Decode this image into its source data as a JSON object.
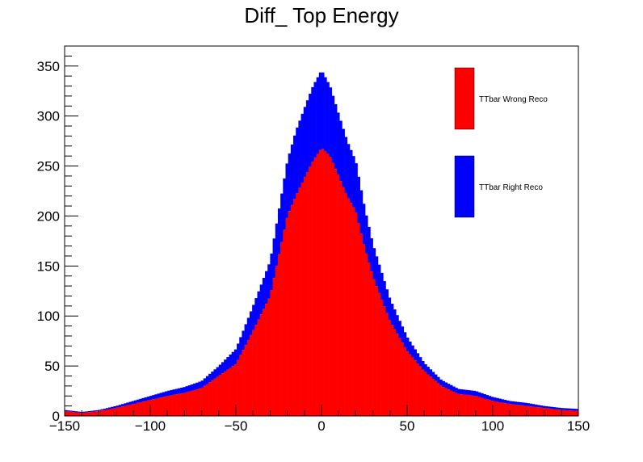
{
  "chart_data": {
    "type": "bar",
    "stacked": true,
    "title": "Diff_ Top Energy",
    "xlabel": "",
    "ylabel": "",
    "xlim": [
      -150,
      150
    ],
    "ylim": [
      0,
      370
    ],
    "bin_width": 1.5,
    "x_ticks": [
      -150,
      -100,
      -50,
      0,
      50,
      100,
      150
    ],
    "y_ticks": [
      0,
      50,
      100,
      150,
      200,
      250,
      300,
      350
    ],
    "grid": false,
    "legend_position": "top-right",
    "series": [
      {
        "name": "TTbar Wrong Reco",
        "color": "#ff0000",
        "points": [
          [
            -150,
            5
          ],
          [
            -140,
            3
          ],
          [
            -130,
            5
          ],
          [
            -120,
            8
          ],
          [
            -110,
            12
          ],
          [
            -100,
            16
          ],
          [
            -90,
            20
          ],
          [
            -80,
            23
          ],
          [
            -70,
            28
          ],
          [
            -60,
            40
          ],
          [
            -50,
            52
          ],
          [
            -40,
            85
          ],
          [
            -30,
            120
          ],
          [
            -25,
            160
          ],
          [
            -20,
            200
          ],
          [
            -15,
            220
          ],
          [
            -10,
            238
          ],
          [
            -5,
            255
          ],
          [
            0,
            268
          ],
          [
            5,
            260
          ],
          [
            10,
            240
          ],
          [
            15,
            220
          ],
          [
            20,
            205
          ],
          [
            25,
            170
          ],
          [
            30,
            140
          ],
          [
            40,
            95
          ],
          [
            50,
            65
          ],
          [
            60,
            45
          ],
          [
            70,
            30
          ],
          [
            80,
            22
          ],
          [
            90,
            20
          ],
          [
            100,
            15
          ],
          [
            110,
            12
          ],
          [
            120,
            10
          ],
          [
            130,
            8
          ],
          [
            140,
            6
          ],
          [
            150,
            5
          ]
        ]
      },
      {
        "name": "TTbar Right Reco",
        "color": "#0000ff",
        "points": [
          [
            -150,
            1
          ],
          [
            -140,
            1
          ],
          [
            -130,
            1
          ],
          [
            -120,
            2
          ],
          [
            -110,
            3
          ],
          [
            -100,
            4
          ],
          [
            -90,
            5
          ],
          [
            -80,
            6
          ],
          [
            -70,
            7
          ],
          [
            -60,
            10
          ],
          [
            -50,
            15
          ],
          [
            -40,
            25
          ],
          [
            -30,
            35
          ],
          [
            -25,
            45
          ],
          [
            -20,
            55
          ],
          [
            -15,
            65
          ],
          [
            -10,
            70
          ],
          [
            -5,
            75
          ],
          [
            0,
            78
          ],
          [
            5,
            70
          ],
          [
            10,
            62
          ],
          [
            15,
            55
          ],
          [
            20,
            50
          ],
          [
            25,
            40
          ],
          [
            30,
            32
          ],
          [
            40,
            22
          ],
          [
            50,
            14
          ],
          [
            60,
            8
          ],
          [
            70,
            6
          ],
          [
            80,
            5
          ],
          [
            90,
            5
          ],
          [
            100,
            4
          ],
          [
            110,
            3
          ],
          [
            120,
            3
          ],
          [
            130,
            2
          ],
          [
            140,
            2
          ],
          [
            150,
            2
          ]
        ]
      }
    ]
  }
}
